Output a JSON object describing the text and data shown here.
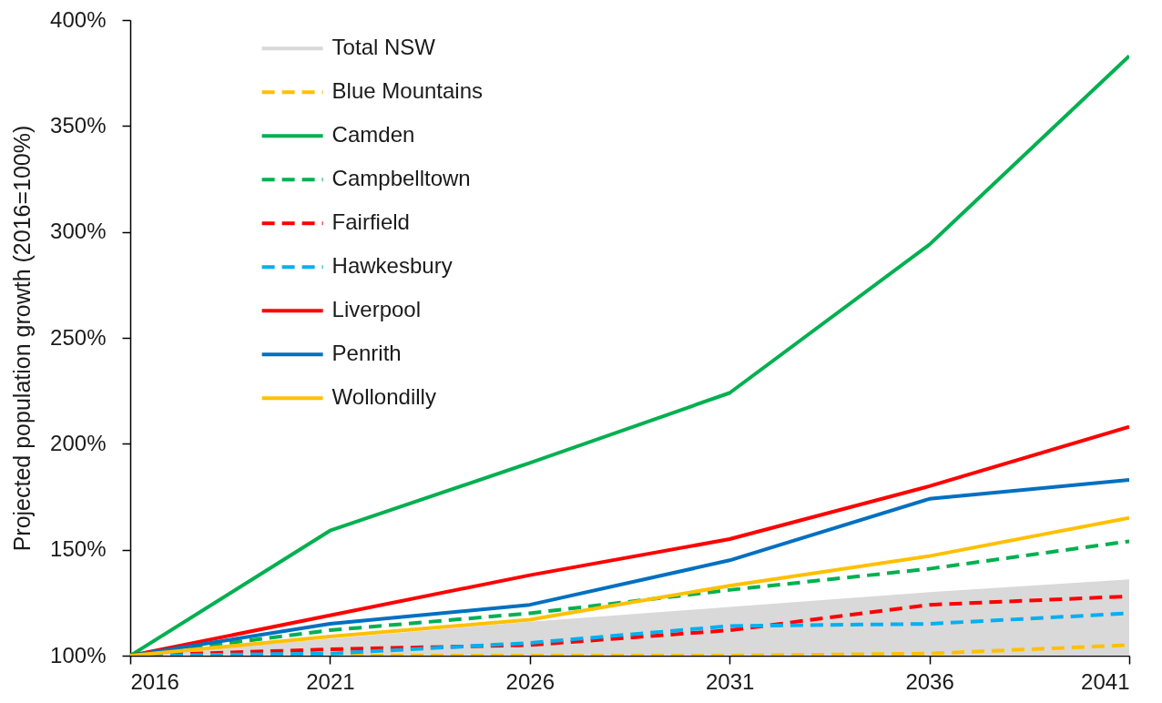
{
  "chart_data": {
    "type": "line",
    "ylabel": "Projected population growth (2016=100%)",
    "x": [
      2016,
      2021,
      2026,
      2031,
      2036,
      2041
    ],
    "xlim": [
      2016,
      2041
    ],
    "xticks": [
      2016,
      2021,
      2026,
      2031,
      2036,
      2041
    ],
    "ylim": [
      100,
      400
    ],
    "yticks": [
      {
        "value": 100,
        "label": "100%"
      },
      {
        "value": 150,
        "label": "150%"
      },
      {
        "value": 200,
        "label": "200%"
      },
      {
        "value": 250,
        "label": "250%"
      },
      {
        "value": 300,
        "label": "300%"
      },
      {
        "value": 350,
        "label": "350%"
      },
      {
        "value": 400,
        "label": "400%"
      }
    ],
    "legend": "top left",
    "series": [
      {
        "name": "Total NSW",
        "type": "area",
        "color": "#d9d9d9",
        "values": [
          100,
          108,
          116,
          123,
          130,
          136
        ]
      },
      {
        "name": "Blue Mountains",
        "color": "#ffc000",
        "line_style": "dashed",
        "values": [
          100,
          100,
          100,
          100,
          101,
          105
        ]
      },
      {
        "name": "Camden",
        "color": "#00b050",
        "line_style": "solid",
        "values": [
          100,
          159,
          191,
          224,
          294,
          383
        ]
      },
      {
        "name": "Campbelltown",
        "color": "#00b050",
        "line_style": "dashed",
        "values": [
          100,
          112,
          120,
          131,
          141,
          154
        ]
      },
      {
        "name": "Fairfield",
        "color": "#ff0000",
        "line_style": "dashed",
        "values": [
          100,
          103,
          105,
          112,
          124,
          128
        ]
      },
      {
        "name": "Hawkesbury",
        "color": "#00b0f0",
        "line_style": "dashed",
        "values": [
          100,
          101,
          106,
          114,
          115,
          120
        ]
      },
      {
        "name": "Liverpool",
        "color": "#ff0000",
        "line_style": "solid",
        "values": [
          100,
          119,
          138,
          155,
          180,
          208
        ]
      },
      {
        "name": "Penrith",
        "color": "#0070c0",
        "line_style": "solid",
        "values": [
          100,
          115,
          124,
          145,
          174,
          183
        ]
      },
      {
        "name": "Wollondilly",
        "color": "#ffc000",
        "line_style": "solid",
        "values": [
          100,
          109,
          117,
          133,
          147,
          165
        ]
      }
    ]
  }
}
